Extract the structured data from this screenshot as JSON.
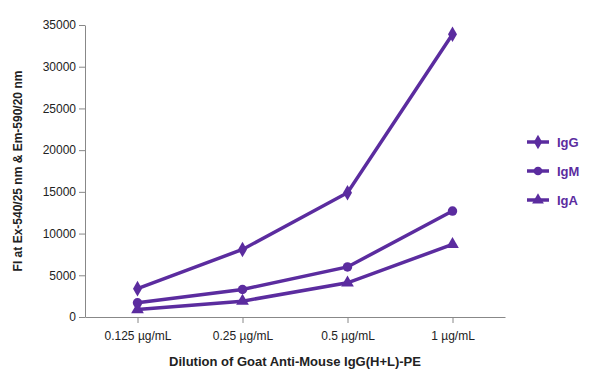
{
  "chart_data": {
    "type": "line",
    "x_label": "Dilution of Goat Anti-Mouse IgG(H+L)-PE",
    "y_label": "FI at Ex-540/25 nm & Em-590/20 nm",
    "categories": [
      "0.125 µg/mL",
      "0.25 µg/mL",
      "0.5 µg/mL",
      "1 µg/mL"
    ],
    "series": [
      {
        "name": "IgG",
        "color": "#5b2c9f",
        "marker": "diamond",
        "values": [
          3400,
          8100,
          14900,
          33900
        ]
      },
      {
        "name": "IgM",
        "color": "#5b2c9f",
        "marker": "circle",
        "values": [
          1700,
          3300,
          6000,
          12700
        ]
      },
      {
        "name": "IgA",
        "color": "#5b2c9f",
        "marker": "triangle",
        "values": [
          900,
          1900,
          4100,
          8700
        ]
      }
    ],
    "ylim": [
      0,
      35000
    ],
    "yticks": [
      0,
      5000,
      10000,
      15000,
      20000,
      25000,
      30000,
      35000
    ],
    "grid": false,
    "legend": "right"
  }
}
